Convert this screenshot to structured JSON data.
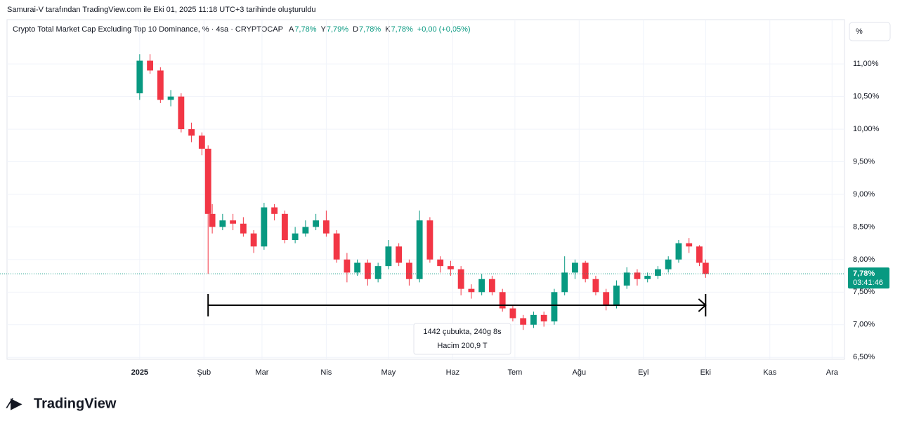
{
  "header": "Samurai-V tarafından TradingView.com ile Eki 01, 2025 11:18 UTC+3 tarihinde oluşturuldu",
  "logo": "TradingView",
  "scale_button": "%",
  "chart_data": {
    "type": "candlestick",
    "title": "Crypto Total Market Cap Excluding Top 10 Dominance, % · 4sa · CRYPTOCAP",
    "legend_values": [
      {
        "label": "A",
        "value": "7,78%"
      },
      {
        "label": "Y",
        "value": "7,79%"
      },
      {
        "label": "D",
        "value": "7,78%"
      },
      {
        "label": "K",
        "value": "7,78%"
      }
    ],
    "change": "+0,00 (+0,05%)",
    "up_color": "#089981",
    "down_color": "#f23645",
    "xlim": [
      -64,
      340
    ],
    "xticks": [
      {
        "value": 0,
        "label": "2025"
      },
      {
        "value": 31,
        "label": "Şub"
      },
      {
        "value": 59,
        "label": "Mar"
      },
      {
        "value": 90,
        "label": "Nis"
      },
      {
        "value": 120,
        "label": "May"
      },
      {
        "value": 151,
        "label": "Haz"
      },
      {
        "value": 181,
        "label": "Tem"
      },
      {
        "value": 212,
        "label": "Ağu"
      },
      {
        "value": 243,
        "label": "Eyl"
      },
      {
        "value": 273,
        "label": "Eki"
      },
      {
        "value": 304,
        "label": "Kas"
      },
      {
        "value": 334,
        "label": "Ara"
      }
    ],
    "ylim": [
      6.47,
      11.68
    ],
    "yticks": [
      {
        "value": 6.5,
        "label": "6,50%"
      },
      {
        "value": 7,
        "label": "7,00%"
      },
      {
        "value": 7.5,
        "label": "7,50%"
      },
      {
        "value": 8,
        "label": "8,00%"
      },
      {
        "value": 8.5,
        "label": "8,50%"
      },
      {
        "value": 9,
        "label": "9,00%"
      },
      {
        "value": 9.5,
        "label": "9,50%"
      },
      {
        "value": 10,
        "label": "10,00%"
      },
      {
        "value": 10.5,
        "label": "10,50%"
      },
      {
        "value": 11,
        "label": "11,00%"
      }
    ],
    "grid": true,
    "x": [
      0,
      5,
      10,
      15,
      20,
      25,
      30,
      33,
      35,
      40,
      45,
      50,
      55,
      60,
      65,
      70,
      75,
      80,
      85,
      90,
      95,
      100,
      105,
      110,
      115,
      120,
      125,
      130,
      135,
      140,
      145,
      150,
      155,
      160,
      165,
      170,
      175,
      180,
      185,
      190,
      195,
      200,
      205,
      210,
      215,
      220,
      225,
      230,
      235,
      240,
      245,
      250,
      255,
      260,
      265,
      270,
      273
    ],
    "open": [
      10.55,
      11.05,
      10.9,
      10.45,
      10.5,
      10.0,
      9.9,
      9.7,
      8.7,
      8.5,
      8.6,
      8.55,
      8.4,
      8.2,
      8.8,
      8.7,
      8.3,
      8.4,
      8.5,
      8.6,
      8.4,
      8.0,
      7.8,
      7.95,
      7.7,
      7.9,
      8.2,
      7.95,
      7.7,
      8.6,
      8.0,
      7.9,
      7.85,
      7.55,
      7.5,
      7.7,
      7.5,
      7.25,
      7.1,
      7.0,
      7.15,
      7.05,
      7.5,
      7.8,
      7.95,
      7.7,
      7.5,
      7.3,
      7.6,
      7.8,
      7.7,
      7.75,
      7.85,
      8.0,
      8.25,
      8.2,
      7.95
    ],
    "high": [
      11.15,
      11.15,
      10.95,
      10.6,
      10.55,
      10.1,
      9.95,
      9.75,
      8.85,
      8.7,
      8.7,
      8.65,
      8.45,
      8.87,
      8.85,
      8.75,
      8.5,
      8.6,
      8.7,
      8.75,
      8.45,
      8.1,
      8.0,
      8.0,
      7.95,
      8.3,
      8.25,
      8.0,
      8.75,
      8.65,
      8.05,
      7.98,
      7.9,
      7.62,
      7.78,
      7.75,
      7.55,
      7.3,
      7.15,
      7.2,
      7.2,
      7.55,
      8.05,
      8.0,
      7.98,
      7.75,
      7.55,
      7.68,
      7.88,
      7.85,
      7.8,
      7.9,
      8.05,
      8.3,
      8.33,
      8.22,
      8.0
    ],
    "low": [
      10.45,
      10.85,
      10.4,
      10.35,
      9.95,
      9.8,
      9.6,
      7.78,
      8.4,
      8.45,
      8.45,
      8.35,
      8.1,
      8.15,
      8.6,
      8.25,
      8.25,
      8.35,
      8.45,
      8.35,
      7.95,
      7.65,
      7.75,
      7.6,
      7.65,
      7.85,
      7.9,
      7.6,
      7.65,
      7.95,
      7.8,
      7.75,
      7.45,
      7.4,
      7.45,
      7.45,
      7.2,
      7.05,
      6.92,
      6.95,
      6.97,
      7.0,
      7.45,
      7.7,
      7.65,
      7.45,
      7.22,
      7.25,
      7.55,
      7.6,
      7.65,
      7.7,
      7.8,
      7.95,
      8.1,
      7.9,
      7.72
    ],
    "close": [
      11.05,
      10.9,
      10.45,
      10.5,
      10.0,
      9.9,
      9.7,
      8.7,
      8.5,
      8.6,
      8.55,
      8.4,
      8.2,
      8.8,
      8.7,
      8.3,
      8.4,
      8.5,
      8.6,
      8.4,
      8.0,
      7.8,
      7.95,
      7.7,
      7.9,
      8.2,
      7.95,
      7.7,
      8.6,
      8.0,
      7.9,
      7.85,
      7.55,
      7.5,
      7.7,
      7.5,
      7.25,
      7.1,
      7.0,
      7.15,
      7.05,
      7.5,
      7.8,
      7.95,
      7.7,
      7.5,
      7.3,
      7.6,
      7.8,
      7.7,
      7.75,
      7.85,
      8.0,
      8.25,
      8.2,
      7.95,
      7.78
    ],
    "last_price": {
      "value": 7.78,
      "label": "7,78%"
    },
    "countdown": "03:41:46",
    "measure": {
      "bars": "1442 çubukta, 240g 8s",
      "volume": "Hacim 200,9 T"
    }
  }
}
